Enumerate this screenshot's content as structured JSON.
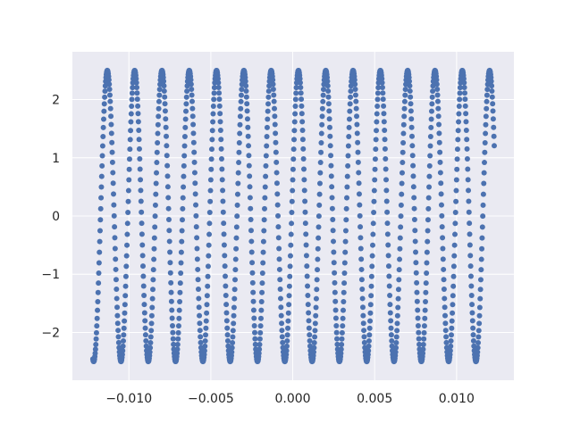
{
  "chart_data": {
    "type": "scatter",
    "title": "",
    "xlabel": "",
    "ylabel": "",
    "xlim": [
      -0.01345,
      0.0135
    ],
    "ylim": [
      -2.82,
      2.82
    ],
    "x_ticks": [
      -0.01,
      -0.005,
      0.0,
      0.005,
      0.01
    ],
    "x_tick_labels": [
      "−0.010",
      "−0.005",
      "0.000",
      "0.005",
      "0.010"
    ],
    "y_ticks": [
      -2,
      -1,
      0,
      1,
      2
    ],
    "y_tick_labels": [
      "−2",
      "−1",
      "0",
      "1",
      "2"
    ],
    "grid": true,
    "background_color": "#EAEAF2",
    "grid_color": "#FFFFFF",
    "marker_color": "#4C72B0",
    "series": [
      {
        "x_range": [
          -0.0122,
          0.0123
        ],
        "sample_step": 2e-05,
        "function": "y = 2.5 * sin(2*pi*f*(x - x_start) + phase)",
        "amplitude": 2.5,
        "frequency_hz": 600,
        "phase": -1.76
      }
    ]
  }
}
